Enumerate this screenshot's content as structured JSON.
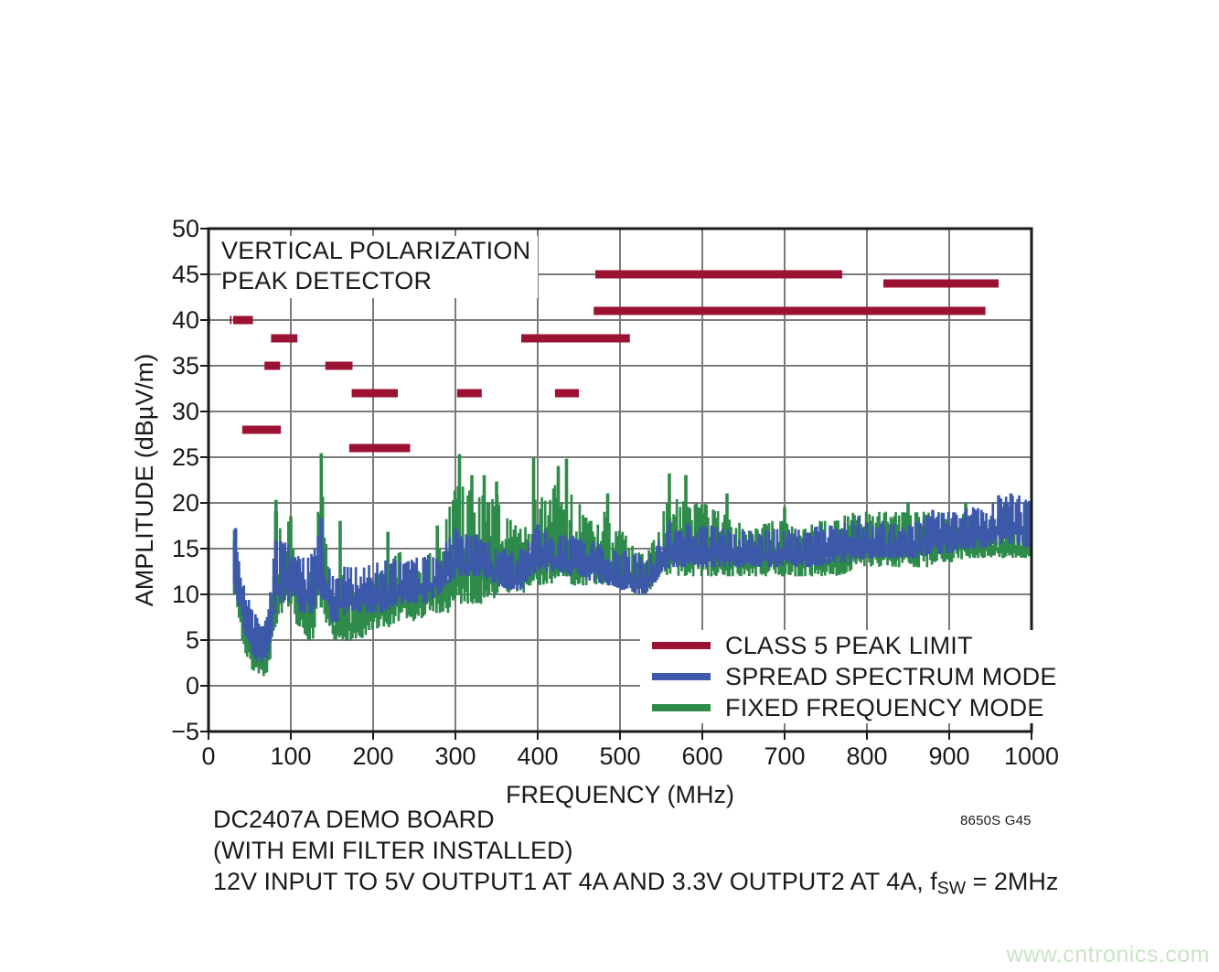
{
  "chart": {
    "title_line1": "VERTICAL POLARIZATION",
    "title_line2": "PEAK DETECTOR",
    "x_axis": {
      "label": "FREQUENCY (MHz)",
      "ticks": [
        "0",
        "100",
        "200",
        "300",
        "400",
        "500",
        "600",
        "700",
        "800",
        "900",
        "1000"
      ]
    },
    "y_axis": {
      "label": "AMPLITUDE (dBµV/m)",
      "ticks": [
        "50",
        "45",
        "40",
        "35",
        "30",
        "25",
        "20",
        "15",
        "10",
        "5",
        "0",
        "−5"
      ]
    },
    "legend": [
      {
        "label": "CLASS 5 PEAK LIMIT",
        "color": "#9B1232"
      },
      {
        "label": "SPREAD SPECTRUM MODE",
        "color": "#3D59A9"
      },
      {
        "label": "FIXED FREQUENCY MODE",
        "color": "#2F8B4A"
      }
    ],
    "frame_color": "#1a1a1a",
    "grid_color": "#7b7b7b"
  },
  "caption": {
    "line1": "DC2407A DEMO BOARD",
    "line2": "(WITH EMI FILTER INSTALLED)",
    "line3_pre": "12V INPUT TO 5V OUTPUT1 AT 4A AND 3.3V OUTPUT2 AT 4A, f",
    "line3_sub": "SW",
    "line3_post": " = 2MHz"
  },
  "plot_code": "8650S G45",
  "watermark": {
    "text": "www.cntronics.com",
    "color": "#c9e5c4"
  },
  "chart_data": {
    "type": "line",
    "title": "VERTICAL POLARIZATION PEAK DETECTOR",
    "xlabel": "FREQUENCY (MHz)",
    "ylabel": "AMPLITUDE (dBµV/m)",
    "xlim": [
      0,
      1000
    ],
    "ylim": [
      -5,
      50
    ],
    "x_ticks": [
      0,
      100,
      200,
      300,
      400,
      500,
      600,
      700,
      800,
      900,
      1000
    ],
    "y_ticks": [
      50,
      45,
      40,
      35,
      30,
      25,
      20,
      15,
      10,
      5,
      0,
      -5
    ],
    "grid": true,
    "legend_position": "inside lower right",
    "series": [
      {
        "name": "CLASS 5 PEAK LIMIT",
        "type": "limit-segments",
        "color": "#9B1232",
        "units": "MHz_start, MHz_stop, dBuV/m",
        "segments": [
          [
            0.15,
            2,
            40
          ],
          [
            26,
            28,
            40
          ],
          [
            30,
            54,
            40
          ],
          [
            41,
            88,
            28
          ],
          [
            68,
            87,
            35
          ],
          [
            76,
            108,
            38
          ],
          [
            142,
            175,
            35
          ],
          [
            171,
            245,
            26
          ],
          [
            174,
            230,
            32
          ],
          [
            302,
            332,
            32
          ],
          [
            380,
            512,
            38
          ],
          [
            421,
            450,
            32
          ],
          [
            468,
            944,
            41
          ],
          [
            470,
            770,
            45
          ],
          [
            820,
            960,
            44
          ]
        ]
      },
      {
        "name": "FIXED FREQUENCY MODE",
        "type": "noisy-spectrum-envelope",
        "color": "#2F8B4A",
        "units": "MHz, low_dBuV/m, high_dBuV/m",
        "envelope": [
          [
            30,
            10,
            17
          ],
          [
            35,
            8,
            14
          ],
          [
            40,
            5,
            11
          ],
          [
            45,
            3,
            9
          ],
          [
            50,
            2,
            7
          ],
          [
            55,
            1.5,
            6
          ],
          [
            60,
            1,
            5
          ],
          [
            65,
            1,
            4.5
          ],
          [
            70,
            1.5,
            5.5
          ],
          [
            75,
            3,
            9
          ],
          [
            80,
            6,
            20
          ],
          [
            85,
            8,
            18
          ],
          [
            90,
            8,
            15
          ],
          [
            95,
            8,
            18
          ],
          [
            100,
            8,
            18
          ],
          [
            105,
            7,
            16
          ],
          [
            110,
            6,
            13
          ],
          [
            115,
            5,
            12
          ],
          [
            120,
            5,
            12
          ],
          [
            125,
            5,
            13
          ],
          [
            130,
            6,
            16
          ],
          [
            135,
            8,
            25
          ],
          [
            140,
            7,
            18
          ],
          [
            145,
            6,
            12
          ],
          [
            150,
            5,
            10
          ],
          [
            155,
            4.5,
            9
          ],
          [
            160,
            5,
            13
          ],
          [
            165,
            5,
            11
          ],
          [
            170,
            5,
            10.5
          ],
          [
            175,
            5,
            11
          ],
          [
            180,
            5,
            12
          ],
          [
            185,
            5,
            13
          ],
          [
            190,
            5.5,
            11
          ],
          [
            195,
            6,
            11
          ],
          [
            200,
            6,
            12
          ],
          [
            210,
            6,
            13
          ],
          [
            220,
            6.5,
            13
          ],
          [
            230,
            7,
            15
          ],
          [
            240,
            7,
            13
          ],
          [
            250,
            7,
            13
          ],
          [
            260,
            7.5,
            14
          ],
          [
            270,
            8,
            15
          ],
          [
            280,
            8,
            15
          ],
          [
            290,
            8,
            19
          ],
          [
            300,
            9,
            22
          ],
          [
            310,
            9,
            22
          ],
          [
            320,
            9,
            21
          ],
          [
            330,
            9,
            21
          ],
          [
            340,
            9,
            20
          ],
          [
            350,
            10,
            21
          ],
          [
            360,
            10,
            19
          ],
          [
            370,
            10,
            18
          ],
          [
            380,
            10,
            17
          ],
          [
            390,
            11,
            20
          ],
          [
            400,
            11,
            21
          ],
          [
            410,
            11,
            20
          ],
          [
            420,
            11,
            22
          ],
          [
            430,
            11,
            22
          ],
          [
            440,
            11,
            21
          ],
          [
            450,
            11,
            20
          ],
          [
            460,
            11,
            18
          ],
          [
            470,
            11,
            18
          ],
          [
            480,
            11,
            19
          ],
          [
            490,
            11,
            17
          ],
          [
            500,
            11,
            17
          ],
          [
            510,
            11,
            16
          ],
          [
            520,
            10.5,
            15
          ],
          [
            530,
            10,
            14
          ],
          [
            540,
            11,
            16
          ],
          [
            550,
            12,
            19
          ],
          [
            560,
            12,
            22
          ],
          [
            570,
            12,
            20
          ],
          [
            580,
            12,
            22
          ],
          [
            590,
            12,
            20
          ],
          [
            600,
            12,
            20
          ],
          [
            620,
            12,
            19
          ],
          [
            640,
            12,
            18
          ],
          [
            660,
            12,
            17
          ],
          [
            680,
            12,
            18
          ],
          [
            700,
            12,
            18
          ],
          [
            720,
            12,
            17
          ],
          [
            740,
            12,
            18
          ],
          [
            760,
            12,
            18
          ],
          [
            780,
            12.5,
            19
          ],
          [
            800,
            13,
            19
          ],
          [
            820,
            13,
            19
          ],
          [
            840,
            13,
            19
          ],
          [
            860,
            13,
            19
          ],
          [
            880,
            13,
            19
          ],
          [
            900,
            13.5,
            19
          ],
          [
            920,
            14,
            19
          ],
          [
            940,
            14,
            18
          ],
          [
            960,
            14,
            17.5
          ],
          [
            980,
            14,
            17
          ],
          [
            1000,
            14,
            17
          ]
        ],
        "spikes": [
          [
            82,
            20.3
          ],
          [
            100,
            18.5
          ],
          [
            137,
            25.4
          ],
          [
            160,
            18
          ],
          [
            218,
            16.8
          ],
          [
            278,
            17.5
          ],
          [
            305,
            25.3
          ],
          [
            320,
            23
          ],
          [
            335,
            23
          ],
          [
            350,
            22.3
          ],
          [
            395,
            24.9
          ],
          [
            425,
            24
          ],
          [
            435,
            24.8
          ],
          [
            485,
            21
          ],
          [
            560,
            23.2
          ],
          [
            580,
            23
          ],
          [
            630,
            21
          ],
          [
            700,
            19.5
          ],
          [
            850,
            20
          ],
          [
            920,
            20
          ]
        ]
      },
      {
        "name": "SPREAD SPECTRUM MODE",
        "type": "noisy-spectrum-envelope",
        "color": "#3D59A9",
        "units": "MHz, low_dBuV/m, high_dBuV/m",
        "envelope": [
          [
            30,
            11,
            17
          ],
          [
            35,
            9,
            14
          ],
          [
            40,
            7,
            12
          ],
          [
            45,
            5,
            10
          ],
          [
            50,
            4,
            9
          ],
          [
            55,
            3,
            8
          ],
          [
            60,
            2.5,
            7
          ],
          [
            65,
            2.5,
            6.5
          ],
          [
            70,
            3,
            7.5
          ],
          [
            75,
            5,
            11
          ],
          [
            80,
            8,
            16
          ],
          [
            85,
            9,
            16
          ],
          [
            90,
            9,
            15.5
          ],
          [
            95,
            9,
            16
          ],
          [
            100,
            9,
            16
          ],
          [
            105,
            9,
            15
          ],
          [
            110,
            8,
            14
          ],
          [
            115,
            8,
            14
          ],
          [
            120,
            8,
            14.5
          ],
          [
            125,
            8,
            15
          ],
          [
            130,
            9,
            16
          ],
          [
            135,
            10,
            18
          ],
          [
            140,
            9,
            15
          ],
          [
            145,
            8,
            13
          ],
          [
            150,
            7,
            12
          ],
          [
            155,
            7,
            12
          ],
          [
            160,
            7.5,
            13
          ],
          [
            170,
            8,
            13
          ],
          [
            180,
            8,
            13
          ],
          [
            190,
            8,
            13
          ],
          [
            200,
            8,
            13.5
          ],
          [
            210,
            8,
            13.5
          ],
          [
            220,
            8.5,
            14
          ],
          [
            230,
            9,
            14
          ],
          [
            240,
            9,
            13.5
          ],
          [
            250,
            9,
            14
          ],
          [
            260,
            9,
            14
          ],
          [
            270,
            9.5,
            14.5
          ],
          [
            280,
            10,
            15
          ],
          [
            290,
            11,
            16
          ],
          [
            300,
            12,
            17
          ],
          [
            310,
            12,
            16.5
          ],
          [
            320,
            12,
            17
          ],
          [
            330,
            12,
            16
          ],
          [
            340,
            11.5,
            16
          ],
          [
            350,
            11,
            15.5
          ],
          [
            360,
            10.5,
            15
          ],
          [
            370,
            10.5,
            15
          ],
          [
            380,
            10.5,
            15
          ],
          [
            390,
            12,
            16.5
          ],
          [
            400,
            12.5,
            17.5
          ],
          [
            410,
            12.5,
            17
          ],
          [
            420,
            12.5,
            16.5
          ],
          [
            430,
            12,
            16.5
          ],
          [
            440,
            12,
            16.5
          ],
          [
            450,
            12,
            16
          ],
          [
            460,
            11.5,
            15.5
          ],
          [
            470,
            11.5,
            16
          ],
          [
            480,
            11,
            15.5
          ],
          [
            490,
            11,
            15
          ],
          [
            500,
            10.5,
            15
          ],
          [
            510,
            10.5,
            14.5
          ],
          [
            520,
            10,
            14.5
          ],
          [
            530,
            10,
            13.5
          ],
          [
            540,
            11,
            15
          ],
          [
            550,
            12.5,
            17
          ],
          [
            560,
            13,
            17.5
          ],
          [
            570,
            13,
            17
          ],
          [
            580,
            13,
            18
          ],
          [
            590,
            13,
            17
          ],
          [
            600,
            13,
            17.5
          ],
          [
            620,
            13,
            17.5
          ],
          [
            640,
            13,
            17
          ],
          [
            660,
            13,
            17
          ],
          [
            680,
            13,
            17
          ],
          [
            700,
            13,
            17.5
          ],
          [
            720,
            13,
            17
          ],
          [
            740,
            13,
            17.5
          ],
          [
            760,
            13.5,
            17.5
          ],
          [
            780,
            13.5,
            18
          ],
          [
            800,
            14,
            18
          ],
          [
            820,
            14,
            18
          ],
          [
            840,
            14,
            18
          ],
          [
            860,
            14,
            18
          ],
          [
            880,
            14.5,
            19
          ],
          [
            900,
            14.5,
            19
          ],
          [
            920,
            15,
            19.5
          ],
          [
            940,
            15,
            19.5
          ],
          [
            960,
            15.5,
            20.5
          ],
          [
            980,
            15.5,
            21
          ],
          [
            1000,
            15,
            20
          ]
        ],
        "spikes": [
          [
            33,
            17.2
          ],
          [
            137,
            18.3
          ],
          [
            300,
            17.2
          ],
          [
            400,
            17.6
          ],
          [
            560,
            18
          ],
          [
            790,
            18.5
          ],
          [
            880,
            19.2
          ],
          [
            960,
            20.8
          ],
          [
            975,
            21
          ]
        ]
      }
    ]
  }
}
